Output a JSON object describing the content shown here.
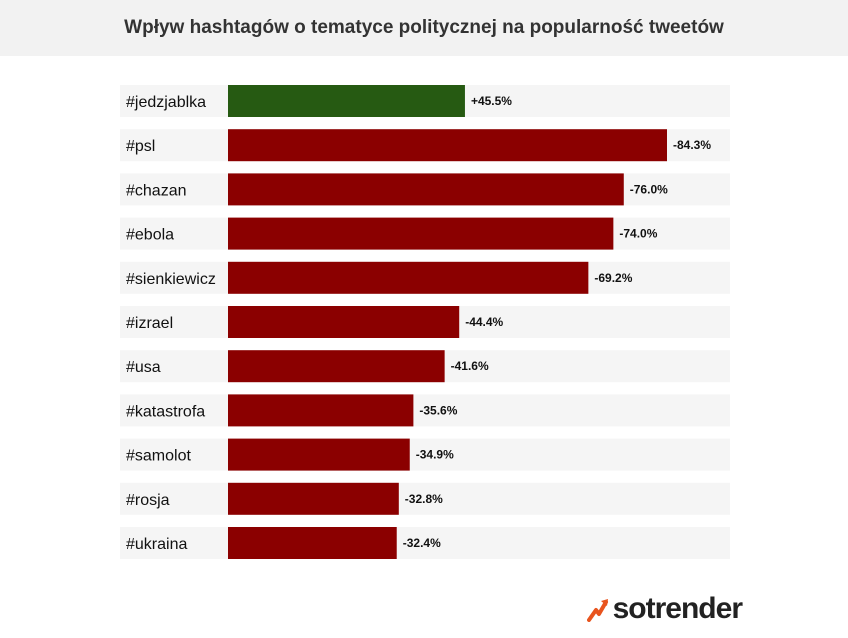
{
  "chart_data": {
    "type": "bar",
    "orientation": "horizontal",
    "title": "Wpływ hashtagów o tematyce politycznej na popularność tweetów",
    "categories": [
      "#jedzjablka",
      "#psl",
      "#chazan",
      "#ebola",
      "#sienkiewicz",
      "#izrael",
      "#usa",
      "#katastrofa",
      "#samolot",
      "#rosja",
      "#ukraina"
    ],
    "values": [
      45.5,
      -84.3,
      -76.0,
      -74.0,
      -69.2,
      -44.4,
      -41.6,
      -35.6,
      -34.9,
      -32.8,
      -32.4
    ],
    "value_labels": [
      "+45.5%",
      "-84.3%",
      "-76.0%",
      "-74.0%",
      "-69.2%",
      "-44.4%",
      "-41.6%",
      "-35.6%",
      "-34.9%",
      "-32.8%",
      "-32.4%"
    ],
    "bar_length": "absolute value",
    "colors": {
      "positive": "#265a12",
      "negative": "#8b0000"
    },
    "grid": false,
    "legend": "none"
  },
  "brand": {
    "name": "sotrender",
    "mark_color": "#e8541e"
  }
}
